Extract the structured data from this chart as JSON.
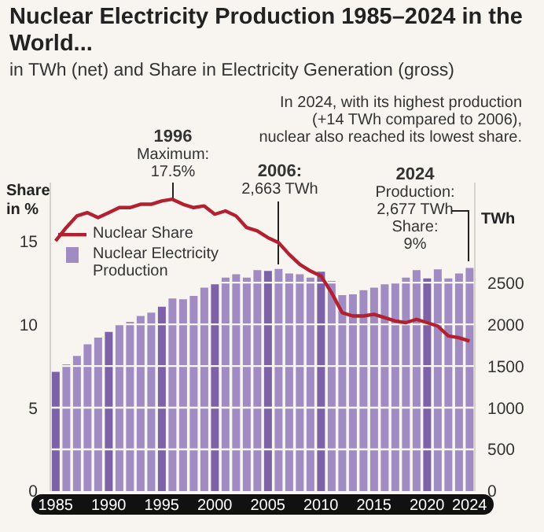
{
  "chart_data": {
    "type": "bar",
    "title": "Nuclear Electricity Production 1985–2024 in the World...",
    "subtitle": "in TWh (net) and Share in Electricity Generation (gross)",
    "ylabel": "Share in %",
    "y2label": "TWh",
    "categories": [
      "1985",
      null,
      null,
      null,
      null,
      "1990",
      null,
      null,
      null,
      null,
      "1995",
      null,
      null,
      null,
      null,
      "2000",
      null,
      null,
      null,
      null,
      "2005",
      null,
      null,
      null,
      null,
      "2010",
      null,
      null,
      null,
      null,
      "2015",
      null,
      null,
      null,
      null,
      "2020",
      null,
      null,
      null,
      "2024"
    ],
    "series": [
      {
        "name": "Nuclear Share",
        "type": "line",
        "axis": "y",
        "color": "#b3202f",
        "values": [
          15.0,
          15.8,
          16.5,
          16.7,
          16.4,
          16.7,
          17.0,
          17.0,
          17.2,
          17.2,
          17.4,
          17.5,
          17.2,
          17.0,
          17.1,
          16.6,
          16.8,
          16.5,
          15.8,
          15.6,
          15.2,
          14.9,
          14.2,
          13.6,
          13.2,
          12.9,
          11.9,
          10.7,
          10.5,
          10.5,
          10.6,
          10.4,
          10.2,
          10.1,
          10.3,
          10.1,
          9.9,
          9.3,
          9.2,
          9.0
        ]
      },
      {
        "name": "Nuclear Electricity Production",
        "axis": "y2",
        "color": "#a08cc2",
        "colors": [
          "#7e62a8",
          "#a08cc2",
          "#a08cc2",
          "#a08cc2",
          "#a08cc2",
          "#7e62a8",
          "#a08cc2",
          "#a08cc2",
          "#a08cc2",
          "#a08cc2",
          "#7e62a8",
          "#a08cc2",
          "#a08cc2",
          "#a08cc2",
          "#a08cc2",
          "#7e62a8",
          "#a08cc2",
          "#a08cc2",
          "#a08cc2",
          "#a08cc2",
          "#7e62a8",
          "#a08cc2",
          "#a08cc2",
          "#a08cc2",
          "#a08cc2",
          "#7e62a8",
          "#a08cc2",
          "#a08cc2",
          "#a08cc2",
          "#a08cc2",
          "#a08cc2",
          "#a08cc2",
          "#a08cc2",
          "#a08cc2",
          "#a08cc2",
          "#7e62a8",
          "#a08cc2",
          "#a08cc2",
          "#a08cc2",
          "#a08cc2"
        ],
        "values": [
          1430,
          1520,
          1620,
          1760,
          1840,
          1910,
          2000,
          2030,
          2100,
          2140,
          2210,
          2310,
          2300,
          2340,
          2440,
          2480,
          2560,
          2600,
          2560,
          2650,
          2640,
          2663,
          2610,
          2600,
          2560,
          2630,
          2520,
          2350,
          2360,
          2410,
          2440,
          2480,
          2500,
          2560,
          2650,
          2550,
          2660,
          2550,
          2610,
          2677
        ]
      }
    ],
    "ylim": [
      0,
      18.5
    ],
    "yticks": [
      0,
      5,
      10,
      15
    ],
    "y2lim": [
      0,
      3700
    ],
    "y2ticks": [
      0,
      500,
      1000,
      1500,
      2000,
      2500
    ],
    "grid": "y",
    "legend": "top left",
    "marker": "none",
    "annotations": [
      "In 2024, with its highest production\n(+14 TWh compared to 2006),\nnuclear also reached its lowest share.",
      "1996\nMaximum:\n17.5%",
      "2006:\n2,663 TWh",
      "2024\nProduction:\n2,677 TWh\nShare:\n9%"
    ]
  }
}
